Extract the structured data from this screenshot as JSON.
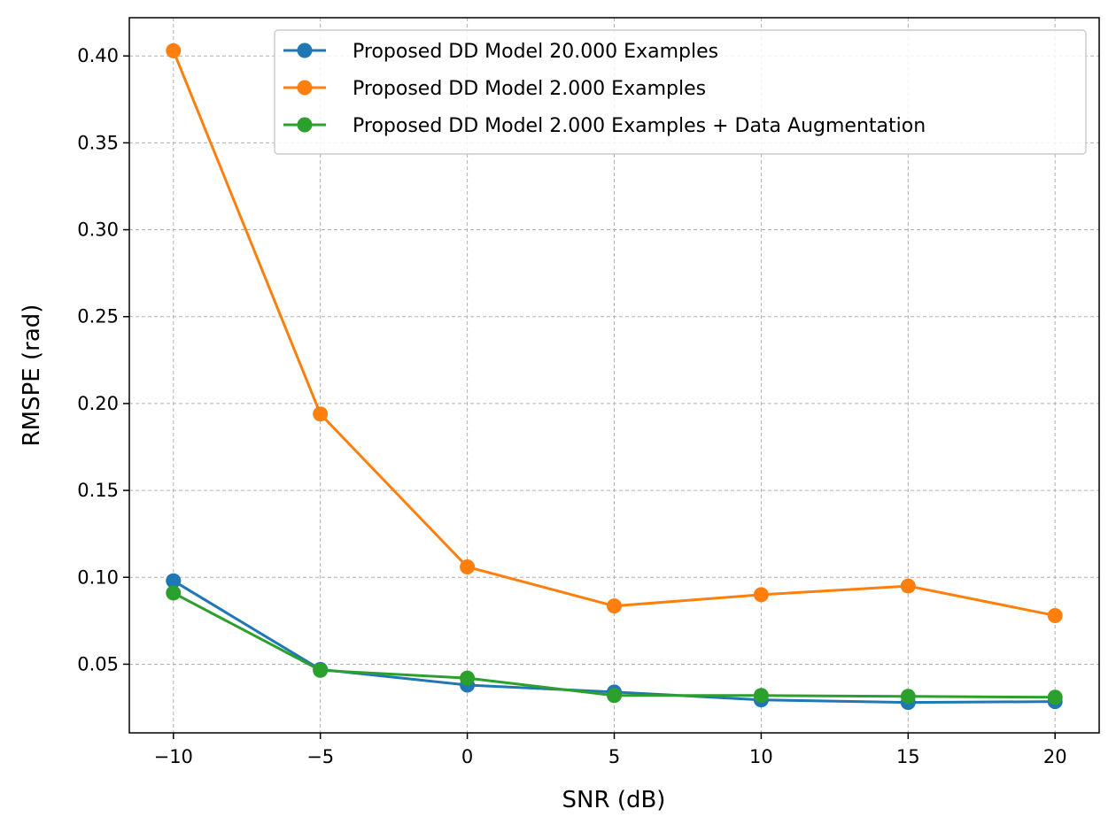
{
  "chart_data": {
    "type": "line",
    "xlabel": "SNR (dB)",
    "ylabel": "RMSPE (rad)",
    "x": [
      -10,
      -5,
      0,
      5,
      10,
      15,
      20
    ],
    "xlim": [
      -11.5,
      21.5
    ],
    "ylim": [
      0.0105,
      0.422
    ],
    "xticks": [
      -10,
      -5,
      0,
      5,
      10,
      15,
      20
    ],
    "xtick_labels": [
      "−10",
      "−5",
      "0",
      "5",
      "10",
      "15",
      "20"
    ],
    "yticks": [
      0.05,
      0.1,
      0.15,
      0.2,
      0.25,
      0.3,
      0.35,
      0.4
    ],
    "ytick_labels": [
      "0.05",
      "0.10",
      "0.15",
      "0.20",
      "0.25",
      "0.30",
      "0.35",
      "0.40"
    ],
    "grid": true,
    "legend_position": "top-right",
    "series": [
      {
        "name": "Proposed DD Model 20.000 Examples",
        "color": "#1f77b4",
        "marker": "circle",
        "values": [
          0.098,
          0.047,
          0.038,
          0.034,
          0.0295,
          0.028,
          0.0285
        ]
      },
      {
        "name": "Proposed DD Model 2.000 Examples",
        "color": "#ff7f0e",
        "marker": "circle",
        "values": [
          0.403,
          0.194,
          0.106,
          0.0835,
          0.09,
          0.095,
          0.078
        ]
      },
      {
        "name": "Proposed DD Model 2.000 Examples + Data Augmentation",
        "color": "#2ca02c",
        "marker": "circle",
        "values": [
          0.091,
          0.0465,
          0.042,
          0.032,
          0.032,
          0.0315,
          0.031
        ]
      }
    ]
  }
}
